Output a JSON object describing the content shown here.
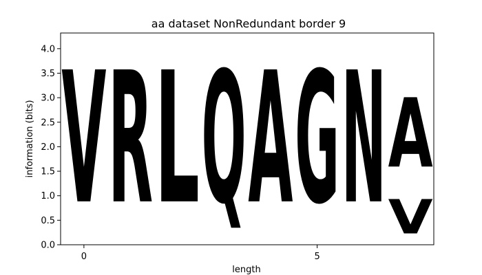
{
  "chart_data": {
    "type": "sequence-logo",
    "title": "aa dataset NonRedundant border 9",
    "xlabel": "length",
    "ylabel": "information (bits)",
    "xlim": [
      -0.5,
      7.5
    ],
    "ylim": [
      0,
      4.32
    ],
    "xticks": [
      0,
      5
    ],
    "yticks": [
      0.0,
      0.5,
      1.0,
      1.5,
      2.0,
      2.5,
      3.0,
      3.5,
      4.0
    ],
    "grid": false,
    "positions": [
      {
        "x": 0,
        "stack": [
          {
            "letter": "V",
            "height": 4.32,
            "color": "#000000"
          }
        ]
      },
      {
        "x": 1,
        "stack": [
          {
            "letter": "R",
            "height": 4.32,
            "color": "#0b1ac4"
          }
        ]
      },
      {
        "x": 2,
        "stack": [
          {
            "letter": "L",
            "height": 4.32,
            "color": "#000000"
          }
        ]
      },
      {
        "x": 3,
        "stack": [
          {
            "letter": "Q",
            "height": 4.32,
            "color": "#d21fbf"
          }
        ]
      },
      {
        "x": 4,
        "stack": [
          {
            "letter": "A",
            "height": 4.32,
            "color": "#000000"
          }
        ]
      },
      {
        "x": 5,
        "stack": [
          {
            "letter": "G",
            "height": 4.32,
            "color": "#22d42f"
          }
        ]
      },
      {
        "x": 6,
        "stack": [
          {
            "letter": "N",
            "height": 4.32,
            "color": "#d21fbf"
          }
        ]
      },
      {
        "x": 7,
        "stack": [
          {
            "letter": "V",
            "height": 1.13,
            "color": "#000000"
          },
          {
            "letter": "A",
            "height": 2.27,
            "color": "#000000"
          }
        ]
      }
    ]
  }
}
